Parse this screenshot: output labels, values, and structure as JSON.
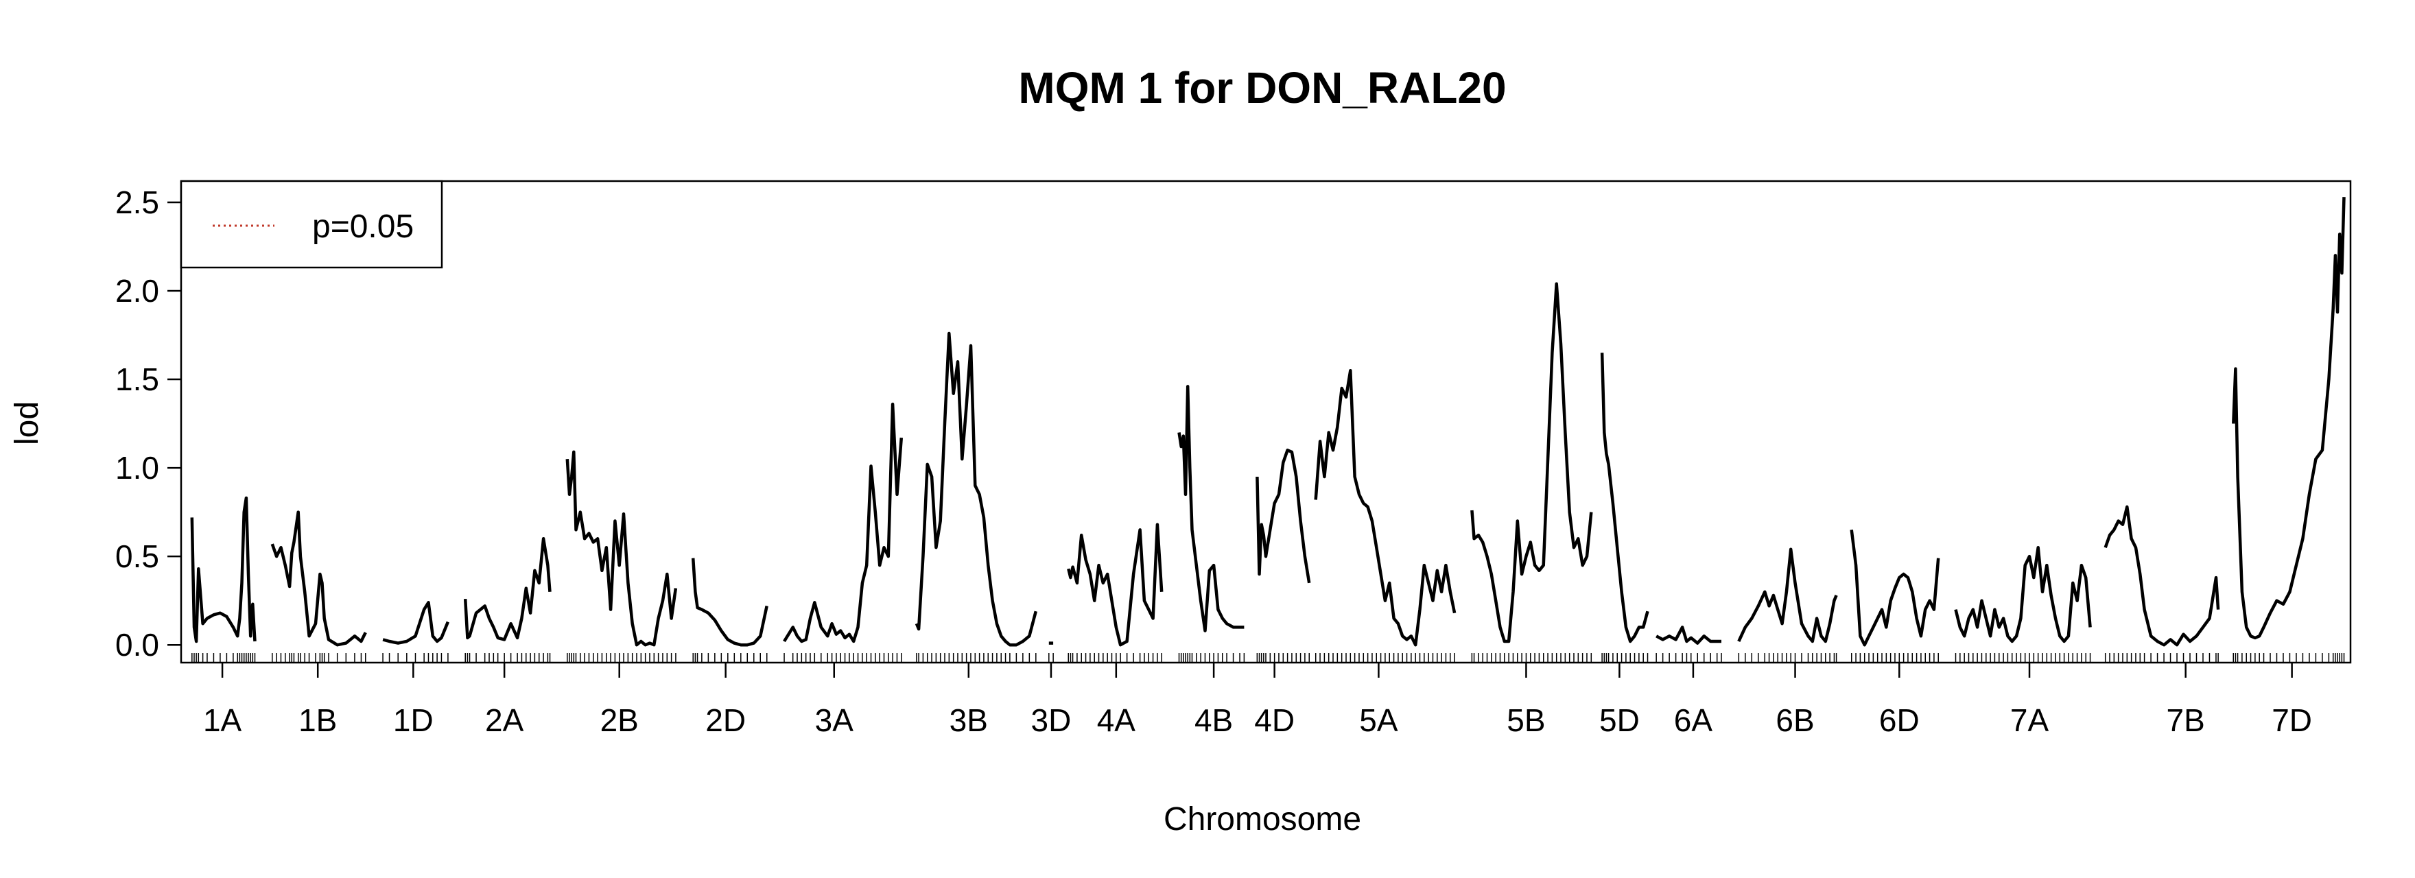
{
  "chart_data": {
    "type": "line",
    "title": "MQM 1 for DON_RAL20",
    "xlabel": "Chromosome",
    "ylabel": "lod",
    "ylim": [
      -0.1,
      2.62
    ],
    "yticks": [
      0.0,
      0.5,
      1.0,
      1.5,
      2.0,
      2.5
    ],
    "ytick_labels": [
      "0.0",
      "0.5",
      "1.0",
      "1.5",
      "2.0",
      "2.5"
    ],
    "xlim": [
      0,
      100
    ],
    "grid": false,
    "legend": {
      "position": "top-left",
      "entries": [
        {
          "label": "p=0.05",
          "style": "dotted",
          "color": "#c0392b"
        }
      ]
    },
    "line_color": "#000000",
    "chromosomes": [
      {
        "name": "1A",
        "start": 0.5,
        "end": 3.4,
        "label_pos": 1.9
      },
      {
        "name": "1B",
        "start": 4.2,
        "end": 8.5,
        "label_pos": 6.3
      },
      {
        "name": "1D",
        "start": 9.3,
        "end": 12.3,
        "label_pos": 10.7
      },
      {
        "name": "2A",
        "start": 13.1,
        "end": 17.0,
        "label_pos": 14.9
      },
      {
        "name": "2B",
        "start": 17.8,
        "end": 22.8,
        "label_pos": 20.2
      },
      {
        "name": "2D",
        "start": 23.6,
        "end": 27.0,
        "label_pos": 25.1
      },
      {
        "name": "3A",
        "start": 27.8,
        "end": 33.2,
        "label_pos": 30.1
      },
      {
        "name": "3B",
        "start": 33.9,
        "end": 39.4,
        "label_pos": 36.3
      },
      {
        "name": "3D",
        "start": 39.9,
        "end": 40.3,
        "label_pos": 40.1
      },
      {
        "name": "4A",
        "start": 40.9,
        "end": 45.2,
        "label_pos": 43.1
      },
      {
        "name": "4B",
        "start": 46.0,
        "end": 49.0,
        "label_pos": 47.6
      },
      {
        "name": "4D",
        "start": 49.6,
        "end": 52.0,
        "label_pos": 50.4
      },
      {
        "name": "5A",
        "start": 52.3,
        "end": 58.7,
        "label_pos": 55.2
      },
      {
        "name": "5B",
        "start": 59.5,
        "end": 65.0,
        "label_pos": 62.0
      },
      {
        "name": "5D",
        "start": 65.5,
        "end": 67.6,
        "label_pos": 66.3
      },
      {
        "name": "6A",
        "start": 68.0,
        "end": 71.0,
        "label_pos": 69.7
      },
      {
        "name": "6B",
        "start": 71.8,
        "end": 76.3,
        "label_pos": 74.4
      },
      {
        "name": "6D",
        "start": 77.0,
        "end": 81.0,
        "label_pos": 79.2
      },
      {
        "name": "7A",
        "start": 81.8,
        "end": 88.0,
        "label_pos": 85.2
      },
      {
        "name": "7B",
        "start": 88.7,
        "end": 93.9,
        "label_pos": 92.4
      },
      {
        "name": "7D",
        "start": 94.6,
        "end": 99.7,
        "label_pos": 97.3
      }
    ],
    "series": [
      {
        "chrom": "1A",
        "x": [
          0.5,
          0.6,
          0.7,
          0.8,
          1.0,
          1.2,
          1.5,
          1.8,
          2.1,
          2.4,
          2.6,
          2.7,
          2.8,
          2.9,
          3.0,
          3.1,
          3.2,
          3.3,
          3.4
        ],
        "y": [
          0.72,
          0.1,
          0.02,
          0.43,
          0.12,
          0.15,
          0.17,
          0.18,
          0.16,
          0.1,
          0.05,
          0.15,
          0.35,
          0.75,
          0.83,
          0.4,
          0.05,
          0.23,
          0.02
        ]
      },
      {
        "chrom": "1B",
        "x": [
          4.2,
          4.4,
          4.6,
          4.8,
          5.0,
          5.1,
          5.2,
          5.4,
          5.5,
          5.7,
          5.9,
          6.2,
          6.4,
          6.5,
          6.6,
          6.8,
          7.2,
          7.6,
          8.0,
          8.3,
          8.5
        ],
        "y": [
          0.57,
          0.5,
          0.55,
          0.45,
          0.33,
          0.52,
          0.58,
          0.75,
          0.5,
          0.3,
          0.05,
          0.12,
          0.4,
          0.35,
          0.15,
          0.03,
          0.0,
          0.01,
          0.05,
          0.02,
          0.07
        ]
      },
      {
        "chrom": "1D",
        "x": [
          9.3,
          9.6,
          10.0,
          10.4,
          10.8,
          11.2,
          11.4,
          11.6,
          11.8,
          12.0,
          12.3
        ],
        "y": [
          0.03,
          0.02,
          0.01,
          0.02,
          0.05,
          0.2,
          0.24,
          0.05,
          0.02,
          0.04,
          0.13
        ]
      },
      {
        "chrom": "2A",
        "x": [
          13.1,
          13.2,
          13.3,
          13.6,
          14.0,
          14.2,
          14.4,
          14.6,
          14.9,
          15.2,
          15.5,
          15.7,
          15.9,
          16.1,
          16.3,
          16.5,
          16.7,
          16.9,
          17.0
        ],
        "y": [
          0.26,
          0.04,
          0.05,
          0.18,
          0.22,
          0.15,
          0.1,
          0.04,
          0.03,
          0.12,
          0.04,
          0.15,
          0.32,
          0.18,
          0.42,
          0.35,
          0.6,
          0.45,
          0.3
        ]
      },
      {
        "chrom": "2B",
        "x": [
          17.8,
          17.9,
          18.0,
          18.1,
          18.2,
          18.4,
          18.6,
          18.8,
          19.0,
          19.2,
          19.4,
          19.6,
          19.8,
          20.0,
          20.2,
          20.4,
          20.6,
          20.8,
          21.0,
          21.2,
          21.4,
          21.6,
          21.8,
          22.0,
          22.2,
          22.4,
          22.6,
          22.8
        ],
        "y": [
          1.05,
          0.85,
          0.95,
          1.09,
          0.65,
          0.75,
          0.6,
          0.63,
          0.58,
          0.6,
          0.42,
          0.55,
          0.2,
          0.7,
          0.45,
          0.74,
          0.35,
          0.12,
          0.0,
          0.02,
          0.0,
          0.01,
          0.0,
          0.15,
          0.25,
          0.4,
          0.15,
          0.32
        ]
      },
      {
        "chrom": "2D",
        "x": [
          23.6,
          23.7,
          23.8,
          24.0,
          24.3,
          24.6,
          24.9,
          25.2,
          25.5,
          25.8,
          26.1,
          26.4,
          26.7,
          27.0
        ],
        "y": [
          0.49,
          0.3,
          0.21,
          0.2,
          0.18,
          0.14,
          0.08,
          0.03,
          0.01,
          0.0,
          0.0,
          0.01,
          0.05,
          0.22
        ]
      },
      {
        "chrom": "3A",
        "x": [
          27.8,
          28.2,
          28.4,
          28.6,
          28.8,
          29.0,
          29.2,
          29.5,
          29.8,
          30.0,
          30.2,
          30.4,
          30.6,
          30.8,
          31.0,
          31.2,
          31.4,
          31.6,
          31.8,
          32.0,
          32.2,
          32.4,
          32.6,
          32.8,
          33.0,
          33.2
        ],
        "y": [
          0.02,
          0.1,
          0.05,
          0.02,
          0.03,
          0.15,
          0.24,
          0.1,
          0.05,
          0.12,
          0.06,
          0.08,
          0.04,
          0.06,
          0.02,
          0.1,
          0.35,
          0.45,
          1.01,
          0.75,
          0.45,
          0.55,
          0.5,
          1.36,
          0.85,
          1.17
        ]
      },
      {
        "chrom": "3B",
        "x": [
          33.9,
          34.0,
          34.2,
          34.4,
          34.6,
          34.8,
          35.0,
          35.2,
          35.4,
          35.6,
          35.8,
          36.0,
          36.2,
          36.4,
          36.6,
          36.8,
          37.0,
          37.2,
          37.4,
          37.6,
          37.8,
          38.0,
          38.2,
          38.5,
          38.8,
          39.1,
          39.4
        ],
        "y": [
          0.12,
          0.09,
          0.5,
          1.02,
          0.95,
          0.55,
          0.7,
          1.25,
          1.76,
          1.42,
          1.6,
          1.05,
          1.35,
          1.69,
          0.9,
          0.85,
          0.72,
          0.45,
          0.25,
          0.12,
          0.05,
          0.02,
          0.0,
          0.0,
          0.02,
          0.05,
          0.19
        ]
      },
      {
        "chrom": "3D",
        "x": [
          40.0,
          40.2
        ],
        "y": [
          0.01,
          0.01
        ]
      },
      {
        "chrom": "4A",
        "x": [
          40.9,
          41.0,
          41.1,
          41.3,
          41.5,
          41.7,
          41.9,
          42.1,
          42.3,
          42.5,
          42.7,
          42.9,
          43.1,
          43.3,
          43.6,
          43.9,
          44.2,
          44.4,
          44.6,
          44.8,
          45.0,
          45.2
        ],
        "y": [
          0.43,
          0.38,
          0.44,
          0.35,
          0.62,
          0.48,
          0.4,
          0.25,
          0.45,
          0.35,
          0.4,
          0.25,
          0.1,
          0.0,
          0.02,
          0.4,
          0.65,
          0.25,
          0.2,
          0.15,
          0.68,
          0.3
        ]
      },
      {
        "chrom": "4B",
        "x": [
          46.0,
          46.1,
          46.2,
          46.3,
          46.4,
          46.5,
          46.6,
          46.8,
          47.0,
          47.2,
          47.4,
          47.6,
          47.8,
          48.0,
          48.2,
          48.5,
          48.8,
          49.0
        ],
        "y": [
          1.2,
          1.12,
          1.18,
          0.85,
          1.46,
          1.0,
          0.65,
          0.45,
          0.25,
          0.08,
          0.42,
          0.45,
          0.2,
          0.15,
          0.12,
          0.1,
          0.1,
          0.1
        ]
      },
      {
        "chrom": "4D",
        "x": [
          49.6,
          49.7,
          49.8,
          49.9,
          50.0,
          50.2,
          50.4,
          50.6,
          50.8,
          51.0,
          51.2,
          51.4,
          51.6,
          51.8,
          52.0
        ],
        "y": [
          0.95,
          0.4,
          0.68,
          0.62,
          0.5,
          0.65,
          0.8,
          0.85,
          1.03,
          1.1,
          1.09,
          0.95,
          0.7,
          0.5,
          0.35
        ]
      },
      {
        "chrom": "5A",
        "x": [
          52.3,
          52.5,
          52.7,
          52.9,
          53.1,
          53.3,
          53.5,
          53.7,
          53.9,
          54.1,
          54.3,
          54.5,
          54.7,
          54.9,
          55.1,
          55.3,
          55.5,
          55.7,
          55.9,
          56.1,
          56.3,
          56.5,
          56.7,
          56.9,
          57.1,
          57.3,
          57.5,
          57.7,
          57.9,
          58.1,
          58.3,
          58.5,
          58.7
        ],
        "y": [
          0.82,
          1.15,
          0.95,
          1.2,
          1.1,
          1.23,
          1.45,
          1.4,
          1.55,
          0.95,
          0.85,
          0.8,
          0.78,
          0.7,
          0.55,
          0.4,
          0.25,
          0.35,
          0.15,
          0.12,
          0.05,
          0.03,
          0.05,
          0.0,
          0.2,
          0.45,
          0.35,
          0.25,
          0.42,
          0.3,
          0.45,
          0.3,
          0.18
        ]
      },
      {
        "chrom": "5B",
        "x": [
          59.5,
          59.6,
          59.8,
          60.0,
          60.2,
          60.4,
          60.6,
          60.8,
          61.0,
          61.2,
          61.4,
          61.6,
          61.8,
          62.0,
          62.2,
          62.4,
          62.6,
          62.8,
          63.0,
          63.2,
          63.4,
          63.6,
          63.8,
          64.0,
          64.2,
          64.4,
          64.6,
          64.8,
          65.0
        ],
        "y": [
          0.76,
          0.6,
          0.62,
          0.58,
          0.5,
          0.4,
          0.25,
          0.1,
          0.02,
          0.02,
          0.3,
          0.7,
          0.4,
          0.5,
          0.58,
          0.45,
          0.42,
          0.45,
          1.05,
          1.65,
          2.04,
          1.7,
          1.2,
          0.75,
          0.55,
          0.6,
          0.45,
          0.5,
          0.75
        ]
      },
      {
        "chrom": "5D",
        "x": [
          65.5,
          65.6,
          65.7,
          65.8,
          66.0,
          66.2,
          66.4,
          66.6,
          66.8,
          67.0,
          67.2,
          67.4,
          67.6
        ],
        "y": [
          1.65,
          1.2,
          1.08,
          1.02,
          0.8,
          0.55,
          0.3,
          0.1,
          0.02,
          0.05,
          0.1,
          0.1,
          0.19
        ]
      },
      {
        "chrom": "6A",
        "x": [
          68.0,
          68.3,
          68.6,
          68.9,
          69.2,
          69.4,
          69.6,
          69.9,
          70.2,
          70.5,
          70.8,
          71.0
        ],
        "y": [
          0.05,
          0.03,
          0.05,
          0.03,
          0.1,
          0.02,
          0.04,
          0.01,
          0.05,
          0.02,
          0.02,
          0.02
        ]
      },
      {
        "chrom": "6B",
        "x": [
          71.8,
          72.1,
          72.4,
          72.7,
          73.0,
          73.2,
          73.4,
          73.6,
          73.8,
          74.0,
          74.2,
          74.4,
          74.7,
          75.0,
          75.2,
          75.4,
          75.6,
          75.8,
          76.0,
          76.2,
          76.3
        ],
        "y": [
          0.02,
          0.1,
          0.15,
          0.22,
          0.3,
          0.22,
          0.28,
          0.2,
          0.12,
          0.3,
          0.54,
          0.35,
          0.12,
          0.05,
          0.02,
          0.15,
          0.05,
          0.02,
          0.12,
          0.25,
          0.28
        ]
      },
      {
        "chrom": "6D",
        "x": [
          77.0,
          77.2,
          77.4,
          77.6,
          77.8,
          78.0,
          78.2,
          78.4,
          78.6,
          78.8,
          79.0,
          79.2,
          79.4,
          79.6,
          79.8,
          80.0,
          80.2,
          80.4,
          80.6,
          80.8,
          81.0
        ],
        "y": [
          0.65,
          0.45,
          0.05,
          0.0,
          0.05,
          0.1,
          0.15,
          0.2,
          0.1,
          0.25,
          0.32,
          0.38,
          0.4,
          0.38,
          0.3,
          0.15,
          0.05,
          0.2,
          0.25,
          0.2,
          0.49
        ]
      },
      {
        "chrom": "7A",
        "x": [
          81.8,
          82.0,
          82.2,
          82.4,
          82.6,
          82.8,
          83.0,
          83.2,
          83.4,
          83.6,
          83.8,
          84.0,
          84.2,
          84.4,
          84.6,
          84.8,
          85.0,
          85.2,
          85.4,
          85.6,
          85.8,
          86.0,
          86.2,
          86.4,
          86.6,
          86.8,
          87.0,
          87.2,
          87.4,
          87.6,
          87.8,
          88.0
        ],
        "y": [
          0.2,
          0.1,
          0.05,
          0.15,
          0.2,
          0.1,
          0.25,
          0.15,
          0.05,
          0.2,
          0.1,
          0.15,
          0.05,
          0.02,
          0.05,
          0.15,
          0.45,
          0.5,
          0.38,
          0.55,
          0.3,
          0.45,
          0.28,
          0.15,
          0.05,
          0.02,
          0.05,
          0.35,
          0.25,
          0.45,
          0.38,
          0.1
        ]
      },
      {
        "chrom": "7B",
        "x": [
          88.7,
          88.9,
          89.1,
          89.3,
          89.5,
          89.7,
          89.9,
          90.1,
          90.3,
          90.5,
          90.8,
          91.1,
          91.4,
          91.7,
          92.0,
          92.3,
          92.6,
          92.9,
          93.2,
          93.5,
          93.8,
          93.9
        ],
        "y": [
          0.55,
          0.62,
          0.65,
          0.7,
          0.68,
          0.78,
          0.6,
          0.55,
          0.4,
          0.2,
          0.05,
          0.02,
          0.0,
          0.03,
          0.0,
          0.06,
          0.02,
          0.05,
          0.1,
          0.15,
          0.38,
          0.2
        ]
      },
      {
        "chrom": "7D",
        "x": [
          94.6,
          94.7,
          94.8,
          95.0,
          95.2,
          95.4,
          95.6,
          95.8,
          96.0,
          96.3,
          96.6,
          96.9,
          97.2,
          97.5,
          97.8,
          98.1,
          98.4,
          98.7,
          99.0,
          99.2,
          99.3,
          99.4,
          99.5,
          99.6,
          99.7
        ],
        "y": [
          1.25,
          1.56,
          0.95,
          0.3,
          0.1,
          0.05,
          0.04,
          0.05,
          0.1,
          0.18,
          0.25,
          0.23,
          0.3,
          0.45,
          0.6,
          0.85,
          1.05,
          1.1,
          1.5,
          1.9,
          2.2,
          1.88,
          2.32,
          2.1,
          2.53
        ]
      }
    ]
  }
}
